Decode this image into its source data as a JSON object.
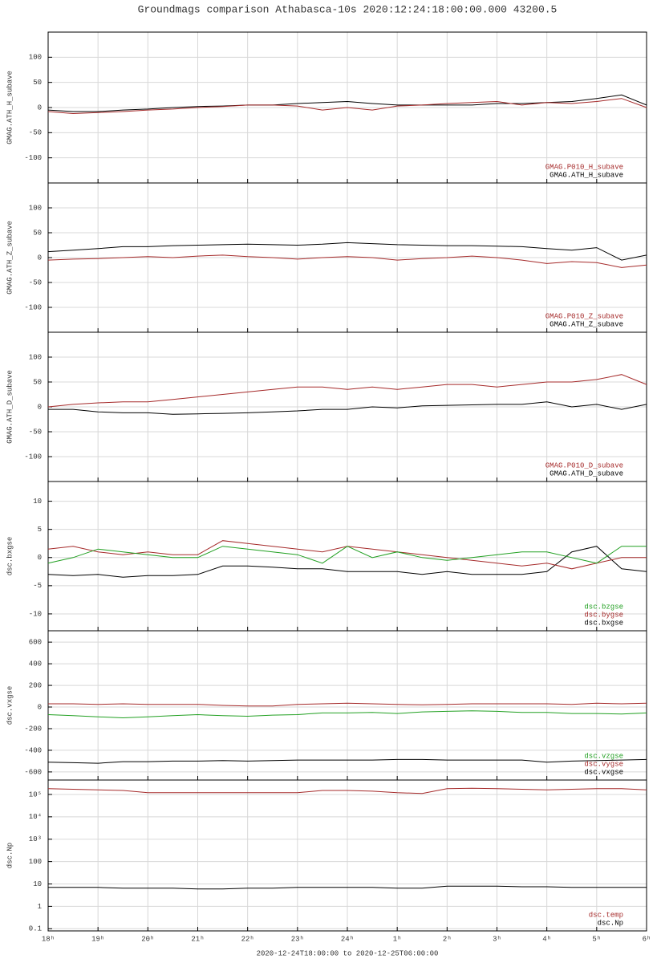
{
  "title": "Groundmags comparison Athabasca-10s 2020:12:24:18:00:00.000 43200.5",
  "xlabel": "2020-12-24T18:00:00 to 2020-12-25T06:00:00",
  "x": [
    18,
    18.5,
    19,
    19.5,
    20,
    20.5,
    21,
    21.5,
    22,
    22.5,
    23,
    23.5,
    24,
    24.5,
    25,
    25.5,
    26,
    26.5,
    27,
    27.5,
    28,
    28.5,
    29,
    29.5,
    30
  ],
  "xlim": [
    18,
    30
  ],
  "xticks": [
    {
      "value": 18,
      "label": "18ʰ"
    },
    {
      "value": 19,
      "label": "19ʰ"
    },
    {
      "value": 20,
      "label": "20ʰ"
    },
    {
      "value": 21,
      "label": "21ʰ"
    },
    {
      "value": 22,
      "label": "22ʰ"
    },
    {
      "value": 23,
      "label": "23ʰ"
    },
    {
      "value": 24,
      "label": "24ʰ"
    },
    {
      "value": 25,
      "label": "1ʰ"
    },
    {
      "value": 26,
      "label": "2ʰ"
    },
    {
      "value": 27,
      "label": "3ʰ"
    },
    {
      "value": 28,
      "label": "4ʰ"
    },
    {
      "value": 29,
      "label": "5ʰ"
    },
    {
      "value": 30,
      "label": "6ʰ"
    }
  ],
  "chart_data": [
    {
      "type": "line",
      "ylabel": "GMAG.ATH_H_subave",
      "ylim": [
        -150,
        150
      ],
      "yticks": [
        -100,
        -50,
        0,
        50,
        100
      ],
      "grid": true,
      "series": [
        {
          "name": "GMAG.P010_H_subave",
          "color": "#a52a2a",
          "values": [
            -8,
            -12,
            -10,
            -8,
            -5,
            -3,
            0,
            2,
            5,
            5,
            3,
            -5,
            0,
            -5,
            3,
            5,
            8,
            10,
            12,
            5,
            10,
            8,
            12,
            18,
            0
          ]
        },
        {
          "name": "GMAG.ATH_H_subave",
          "color": "#000000",
          "values": [
            -5,
            -8,
            -8,
            -5,
            -3,
            0,
            2,
            3,
            5,
            5,
            8,
            10,
            12,
            8,
            5,
            5,
            5,
            5,
            8,
            8,
            10,
            12,
            18,
            25,
            5
          ]
        }
      ]
    },
    {
      "type": "line",
      "ylabel": "GMAG.ATH_Z_subave",
      "ylim": [
        -150,
        150
      ],
      "yticks": [
        -100,
        -50,
        0,
        50,
        100
      ],
      "grid": true,
      "series": [
        {
          "name": "GMAG.P010_Z_subave",
          "color": "#a52a2a",
          "values": [
            -5,
            -3,
            -2,
            0,
            2,
            0,
            3,
            5,
            2,
            0,
            -3,
            0,
            2,
            0,
            -5,
            -2,
            0,
            3,
            0,
            -5,
            -12,
            -8,
            -10,
            -20,
            -15
          ]
        },
        {
          "name": "GMAG.ATH_Z_subave",
          "color": "#000000",
          "values": [
            12,
            15,
            18,
            22,
            22,
            24,
            25,
            26,
            27,
            26,
            25,
            27,
            30,
            28,
            26,
            25,
            24,
            24,
            23,
            22,
            18,
            15,
            20,
            -5,
            5
          ]
        }
      ]
    },
    {
      "type": "line",
      "ylabel": "GMAG.ATH_D_subave",
      "ylim": [
        -150,
        150
      ],
      "yticks": [
        -100,
        -50,
        0,
        50,
        100
      ],
      "grid": true,
      "series": [
        {
          "name": "GMAG.P010_D_subave",
          "color": "#a52a2a",
          "values": [
            0,
            5,
            8,
            10,
            10,
            15,
            20,
            25,
            30,
            35,
            40,
            40,
            35,
            40,
            35,
            40,
            45,
            45,
            40,
            45,
            50,
            50,
            55,
            65,
            45
          ]
        },
        {
          "name": "GMAG.ATH_D_subave",
          "color": "#000000",
          "values": [
            -5,
            -5,
            -10,
            -12,
            -12,
            -15,
            -14,
            -13,
            -12,
            -10,
            -8,
            -5,
            -5,
            0,
            -2,
            2,
            3,
            4,
            5,
            5,
            10,
            0,
            5,
            -5,
            5
          ]
        }
      ]
    },
    {
      "type": "line",
      "ylabel": "dsc.bxgse",
      "ylim": [
        -13,
        13.5
      ],
      "yticks": [
        -10,
        -5,
        0,
        5,
        10
      ],
      "grid": true,
      "series": [
        {
          "name": "dsc.bzgse",
          "color": "#22a022",
          "values": [
            -1,
            0,
            1.5,
            1,
            0.5,
            0,
            0,
            2,
            1.5,
            1,
            0.5,
            -1,
            2,
            0,
            1,
            0,
            -0.5,
            0,
            0.5,
            1,
            1,
            0,
            -1,
            2,
            2
          ]
        },
        {
          "name": "dsc.bygse",
          "color": "#a52a2a",
          "values": [
            1.5,
            2,
            1,
            0.5,
            1,
            0.5,
            0.5,
            3,
            2.5,
            2,
            1.5,
            1,
            2,
            1.5,
            1,
            0.5,
            0,
            -0.5,
            -1,
            -1.5,
            -1,
            -2,
            -1,
            0,
            0
          ]
        },
        {
          "name": "dsc.bxgse",
          "color": "#000000",
          "values": [
            -3,
            -3.2,
            -3,
            -3.5,
            -3.2,
            -3.2,
            -3,
            -1.5,
            -1.5,
            -1.7,
            -2,
            -2,
            -2.5,
            -2.5,
            -2.5,
            -3,
            -2.5,
            -3,
            -3,
            -3,
            -2.5,
            1,
            2,
            -2,
            -2.5
          ]
        }
      ]
    },
    {
      "type": "line",
      "ylabel": "dsc.vxgse",
      "ylim": [
        -675,
        705
      ],
      "yticks": [
        -600,
        -400,
        -200,
        0,
        200,
        400,
        600
      ],
      "grid": true,
      "series": [
        {
          "name": "dsc.vzgse",
          "color": "#22a022",
          "values": [
            -70,
            -80,
            -90,
            -100,
            -90,
            -80,
            -70,
            -80,
            -85,
            -75,
            -70,
            -55,
            -55,
            -50,
            -60,
            -45,
            -40,
            -35,
            -40,
            -50,
            -50,
            -60,
            -60,
            -65,
            -55
          ]
        },
        {
          "name": "dsc.vygse",
          "color": "#a52a2a",
          "values": [
            30,
            30,
            25,
            30,
            25,
            25,
            25,
            15,
            10,
            10,
            25,
            30,
            35,
            30,
            25,
            20,
            25,
            30,
            30,
            30,
            30,
            25,
            35,
            30,
            35
          ]
        },
        {
          "name": "dsc.vxgse",
          "color": "#000000",
          "values": [
            -510,
            -515,
            -520,
            -505,
            -505,
            -500,
            -500,
            -495,
            -500,
            -495,
            -490,
            -490,
            -490,
            -490,
            -485,
            -485,
            -490,
            -490,
            -490,
            -490,
            -510,
            -500,
            -495,
            -490,
            -485
          ]
        }
      ]
    },
    {
      "type": "line",
      "ylabel": "dsc.Np",
      "log": true,
      "ylim": [
        0.08,
        440000
      ],
      "yticks": [
        0.1,
        1,
        10,
        100,
        {
          "value": 1000,
          "label": "10³"
        },
        {
          "value": 10000,
          "label": "10⁴"
        },
        {
          "value": 100000,
          "label": "10⁵"
        }
      ],
      "grid": true,
      "series": [
        {
          "name": "dsc.temp",
          "color": "#a52a2a",
          "values": [
            180000,
            170000,
            160000,
            150000,
            120000,
            120000,
            120000,
            120000,
            120000,
            120000,
            120000,
            150000,
            150000,
            140000,
            120000,
            110000,
            180000,
            190000,
            180000,
            170000,
            160000,
            170000,
            180000,
            180000,
            160000
          ]
        },
        {
          "name": "dsc.Np",
          "color": "#000000",
          "values": [
            7,
            7,
            7,
            6.5,
            6.5,
            6.5,
            6,
            6,
            6.5,
            6.5,
            7,
            7,
            7,
            7,
            6.5,
            6.5,
            8,
            8,
            8,
            7.5,
            7.5,
            7,
            7,
            7,
            7
          ]
        }
      ]
    }
  ]
}
